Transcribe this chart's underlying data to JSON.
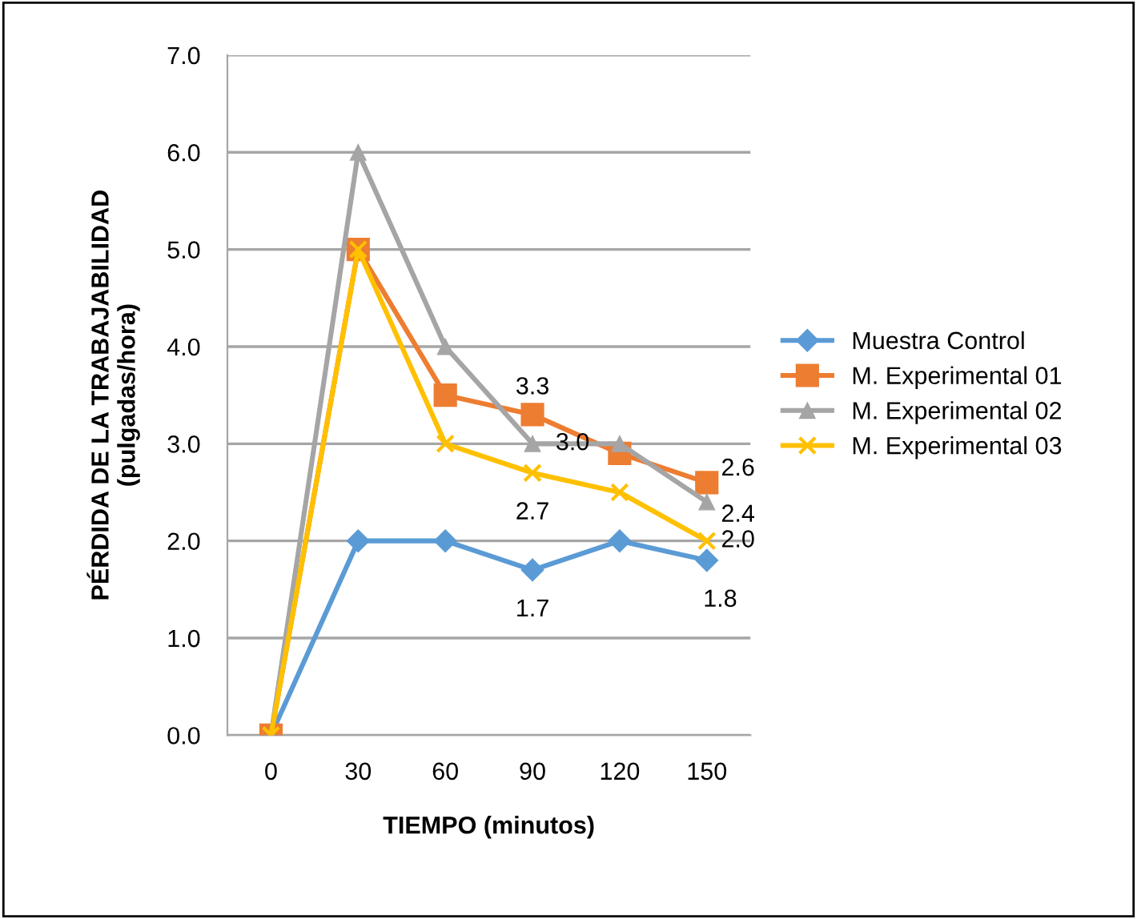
{
  "chart_data": {
    "type": "line",
    "xlabel": "TIEMPO (minutos)",
    "ylabel": "PÉRDIDA DE LA TRABAJABILIDAD\n(pulgadas/hora)",
    "categories": [
      "0",
      "30",
      "60",
      "90",
      "120",
      "150"
    ],
    "series": [
      {
        "name": "Muestra Control",
        "color": "#5b9bd5",
        "marker": "diamond",
        "values": [
          0,
          2.0,
          2.0,
          1.7,
          2.0,
          1.8
        ],
        "value_labels": [
          null,
          null,
          null,
          "1.7",
          null,
          "1.8"
        ]
      },
      {
        "name": "M. Experimental 01",
        "color": "#ed7d31",
        "marker": "square",
        "values": [
          0,
          5.0,
          3.5,
          3.3,
          2.9,
          2.6
        ],
        "value_labels": [
          null,
          null,
          null,
          "3.3",
          null,
          "2.6"
        ]
      },
      {
        "name": "M. Experimental 02",
        "color": "#a5a5a5",
        "marker": "triangle",
        "values": [
          0,
          6.0,
          4.0,
          3.0,
          3.0,
          2.4
        ],
        "value_labels": [
          null,
          null,
          null,
          "3.0",
          null,
          "2.4"
        ]
      },
      {
        "name": "M. Experimental 03",
        "color": "#ffc000",
        "marker": "cross",
        "values": [
          0,
          5.0,
          3.0,
          2.7,
          2.5,
          2.0
        ],
        "value_labels": [
          null,
          null,
          null,
          "2.7",
          null,
          "2.0"
        ]
      }
    ],
    "ylim": [
      0,
      7
    ],
    "yticks": [
      {
        "value": 0,
        "label": "0.0"
      },
      {
        "value": 1,
        "label": "1.0"
      },
      {
        "value": 2,
        "label": "2.0"
      },
      {
        "value": 3,
        "label": "3.0"
      },
      {
        "value": 4,
        "label": "4.0"
      },
      {
        "value": 5,
        "label": "5.0"
      },
      {
        "value": 6,
        "label": "6.0"
      },
      {
        "value": 7,
        "label": "7.0"
      }
    ],
    "grid": "y",
    "legend": "right",
    "line_style": "solid"
  }
}
